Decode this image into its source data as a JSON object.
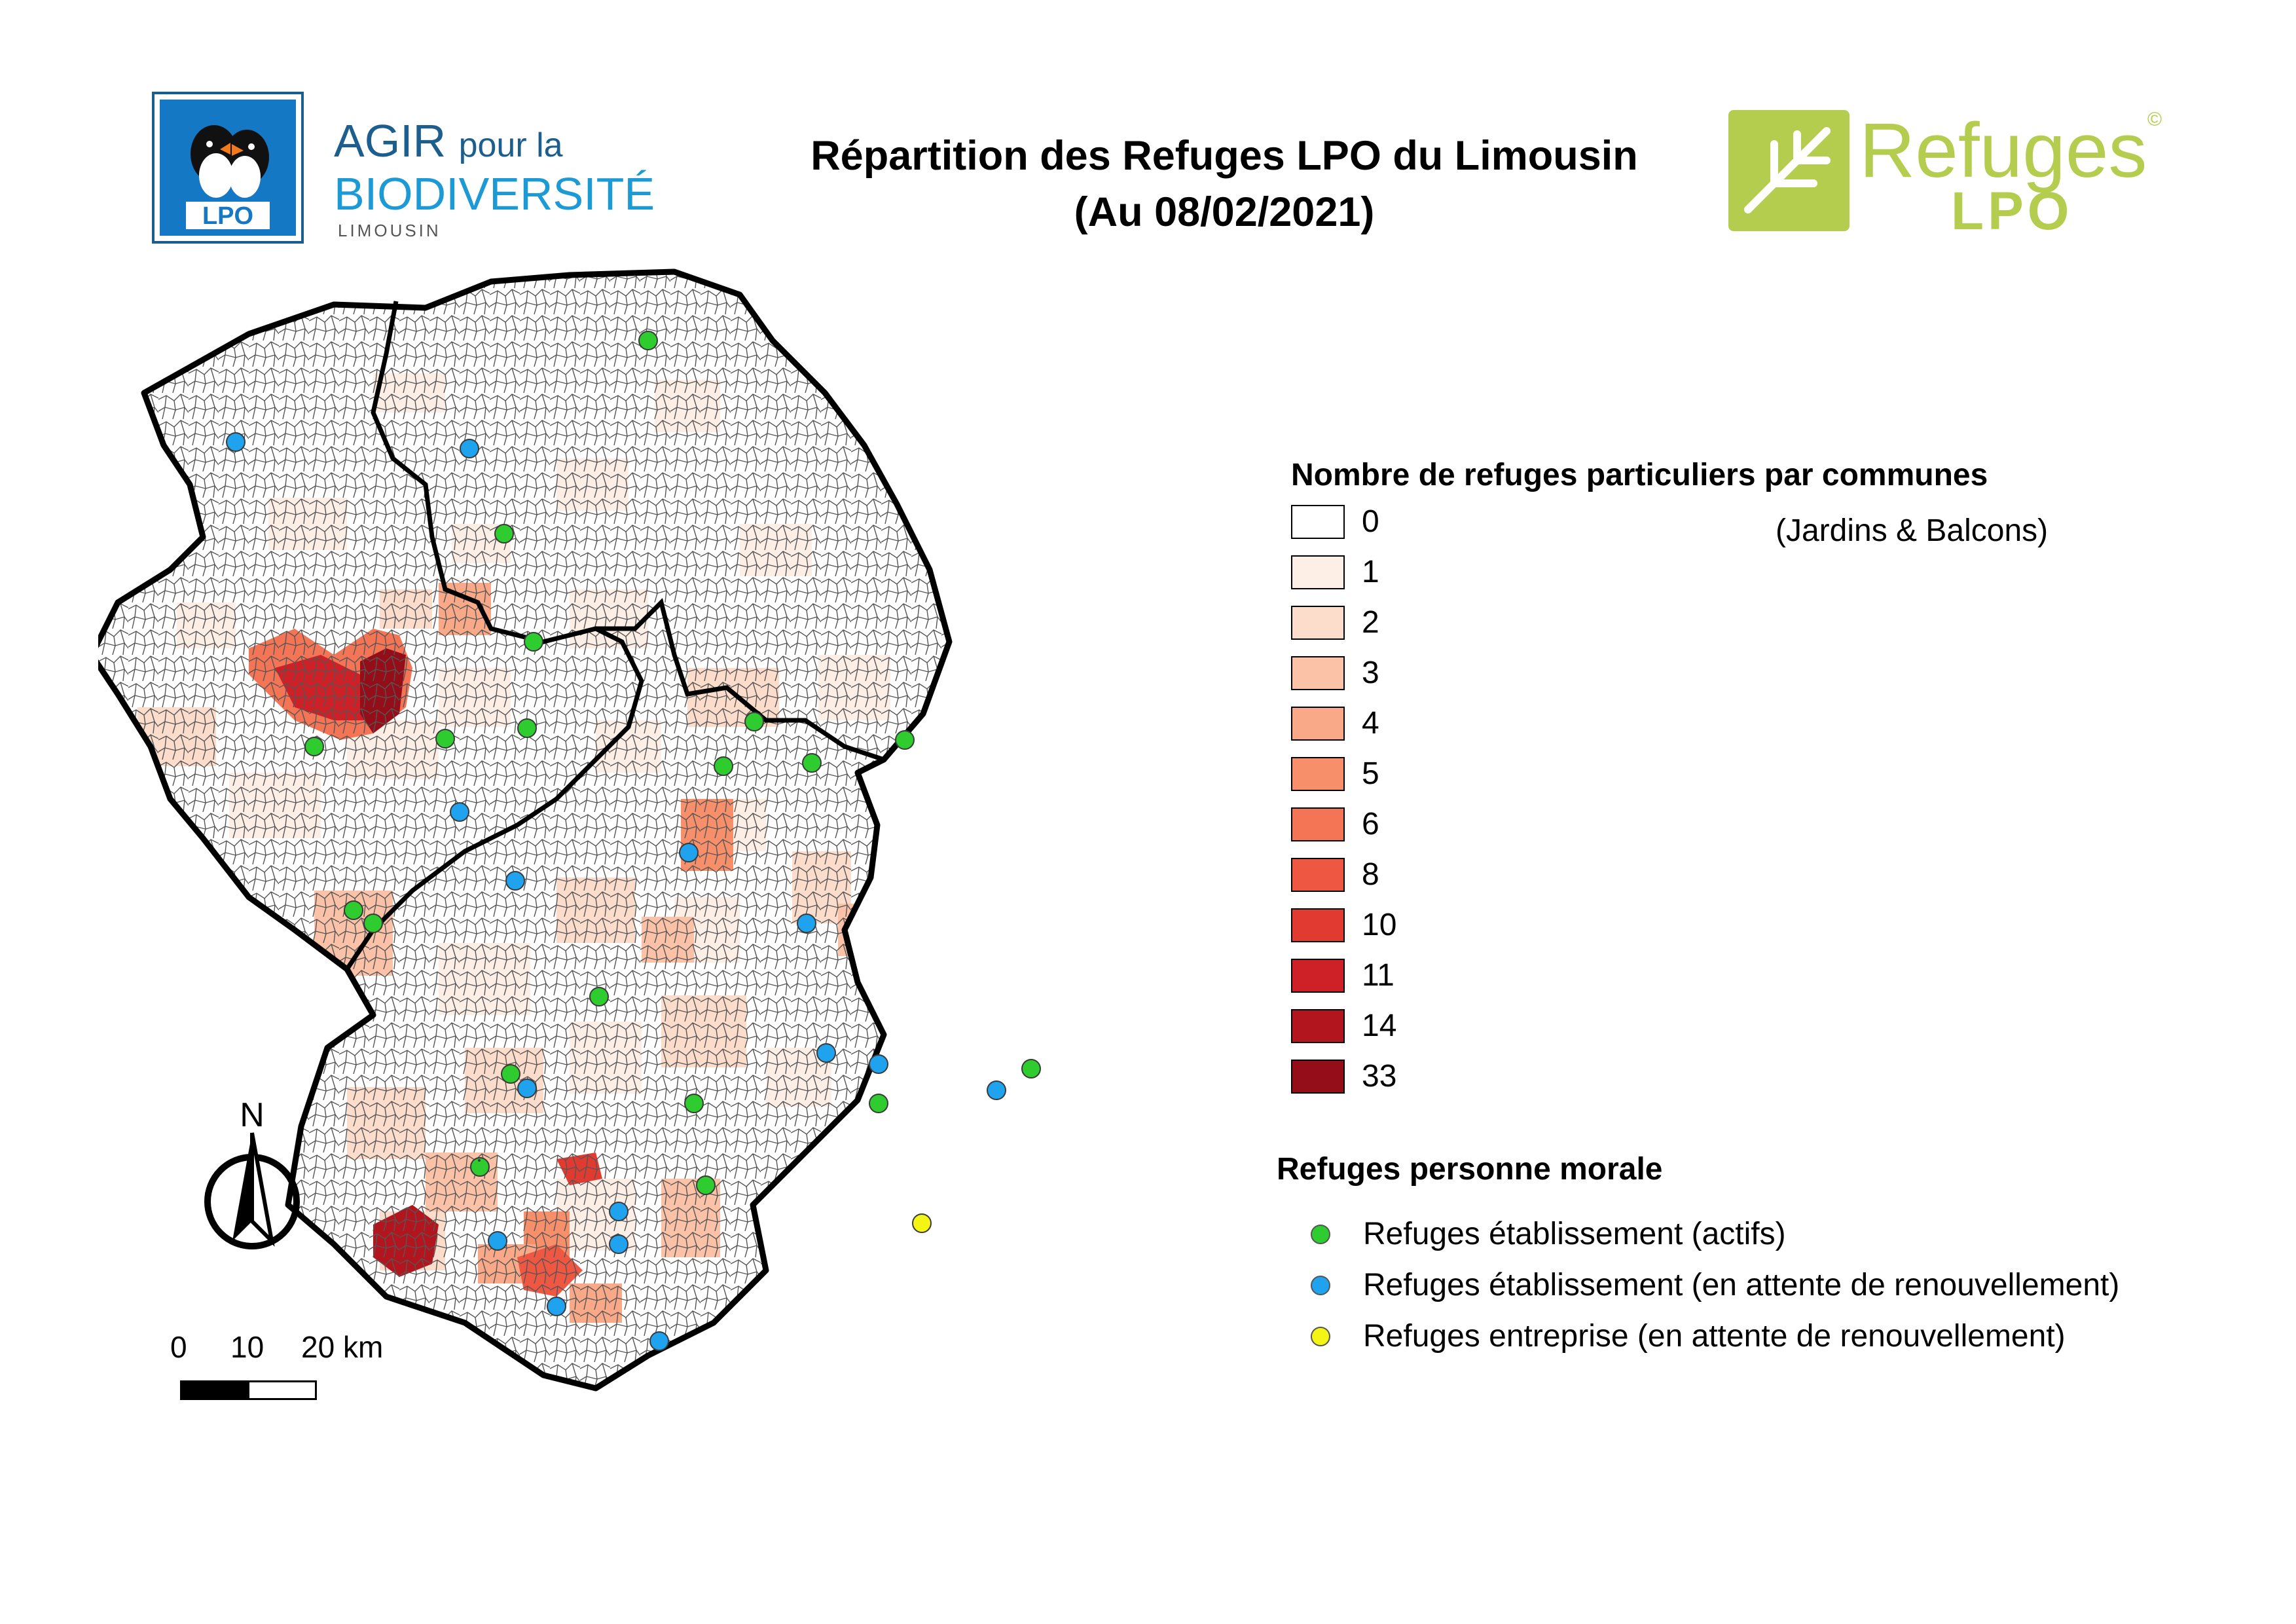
{
  "title": {
    "line1": "Répartition des Refuges LPO du Limousin",
    "line2": "(Au 08/02/2021)"
  },
  "logo_lpo": {
    "badge": "LPO",
    "agir": "AGIR",
    "pour_la": "pour la",
    "biodiversite": "BIODIVERSITÉ",
    "region": "LIMOUSIN"
  },
  "logo_refuges": {
    "word1": "Refuges",
    "word2": "LPO",
    "copyright": "©"
  },
  "north_arrow": {
    "label": "N"
  },
  "scale_bar": {
    "tick0": "0",
    "tick1": "10",
    "tick2": "20 km"
  },
  "legend_individuals": {
    "title": "Nombre de refuges particuliers par communes",
    "subtitle": "(Jardins & Balcons)",
    "classes": [
      {
        "label": "0",
        "color": "#ffffff"
      },
      {
        "label": "1",
        "color": "#fdeee6"
      },
      {
        "label": "2",
        "color": "#fcdcca"
      },
      {
        "label": "3",
        "color": "#fbc2a8"
      },
      {
        "label": "4",
        "color": "#f9a987"
      },
      {
        "label": "5",
        "color": "#f88f6b"
      },
      {
        "label": "6",
        "color": "#f47556"
      },
      {
        "label": "8",
        "color": "#ee5742"
      },
      {
        "label": "10",
        "color": "#e13a30"
      },
      {
        "label": "11",
        "color": "#cd2027"
      },
      {
        "label": "14",
        "color": "#b3151e"
      },
      {
        "label": "33",
        "color": "#930e18"
      }
    ]
  },
  "legend_moral": {
    "title": "Refuges personne morale",
    "items": [
      {
        "label": "Refuges établissement (actifs)",
        "color": "#2ecc2e"
      },
      {
        "label": "Refuges établissement (en attente de renouvellement)",
        "color": "#1fa3ef"
      },
      {
        "label": "Refuges entreprise (en attente de renouvellement)",
        "color": "#f5f515"
      }
    ]
  }
}
